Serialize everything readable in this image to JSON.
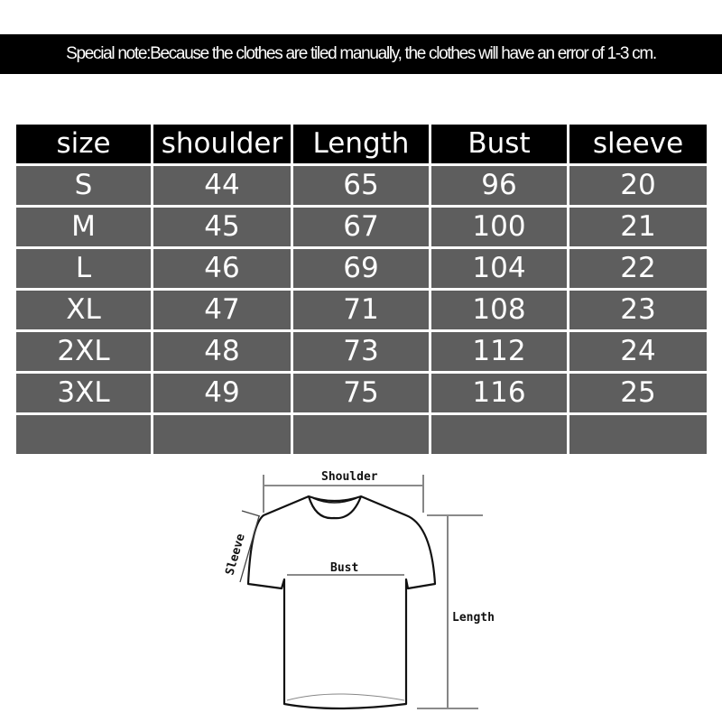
{
  "note": "Special note:Because the clothes are tiled manually, the clothes will have an error of 1-3 cm.",
  "table": {
    "headers": [
      "size",
      "shoulder",
      "Length",
      "Bust",
      "sleeve"
    ],
    "rows": [
      [
        "S",
        "44",
        "65",
        "96",
        "20"
      ],
      [
        "M",
        "45",
        "67",
        "100",
        "21"
      ],
      [
        "L",
        "46",
        "69",
        "104",
        "22"
      ],
      [
        "XL",
        "47",
        "71",
        "108",
        "23"
      ],
      [
        "2XL",
        "48",
        "73",
        "112",
        "24"
      ],
      [
        "3XL",
        "49",
        "75",
        "116",
        "25"
      ],
      [
        "",
        "",
        "",
        "",
        ""
      ]
    ]
  },
  "diagram": {
    "shoulder_label": "Shoulder",
    "bust_label": "Bust",
    "length_label": "Length",
    "sleeve_label": "Sleeve"
  },
  "colors": {
    "header_bg": "#000000",
    "cell_bg": "#5e5e5e",
    "text": "#ffffff"
  }
}
